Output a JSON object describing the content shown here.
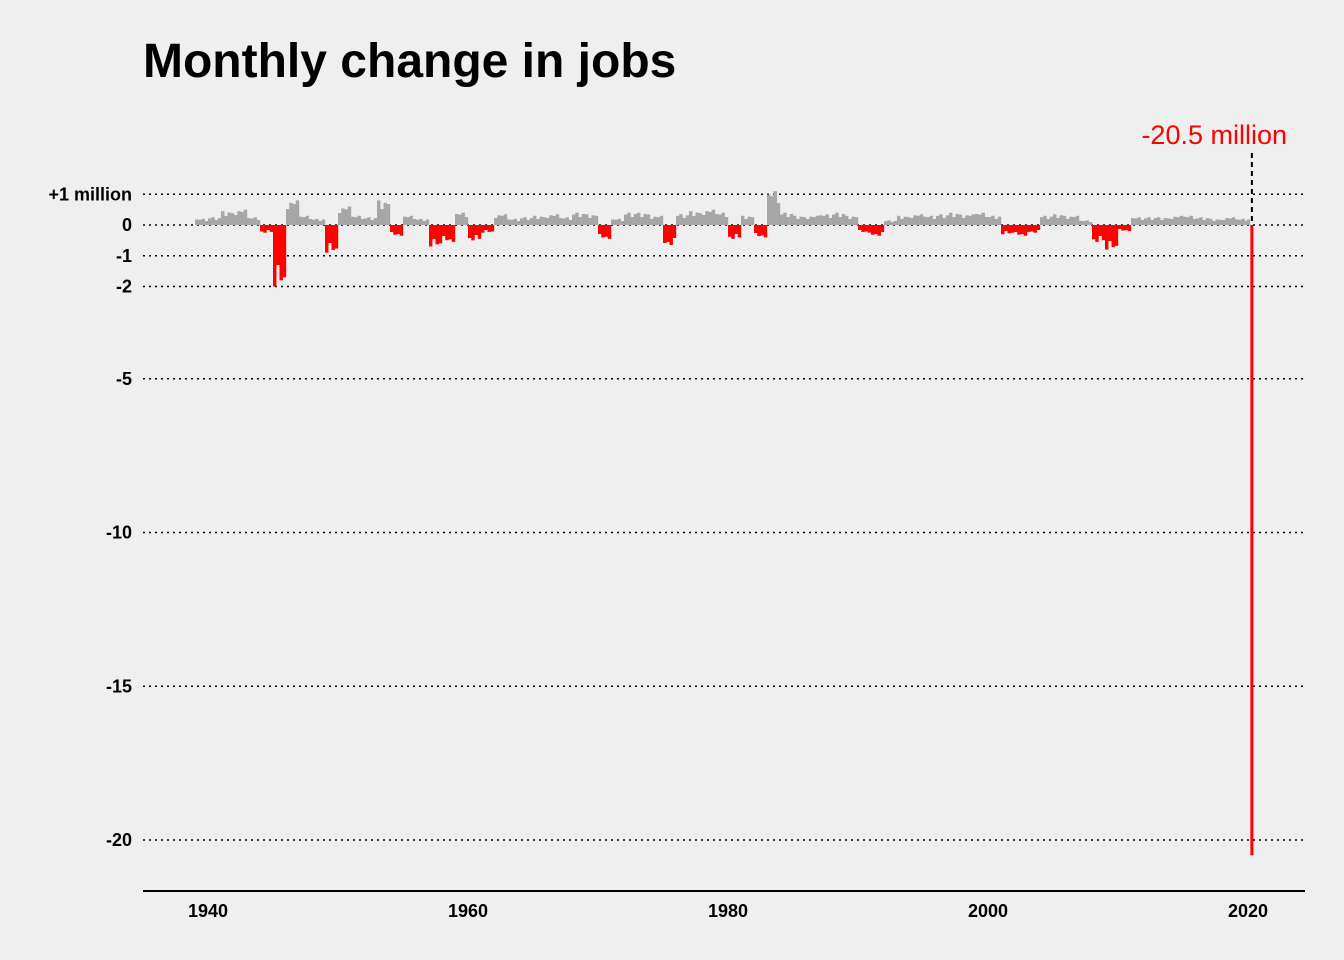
{
  "chart_data": {
    "type": "bar",
    "title": "Monthly change in jobs",
    "xlabel": "",
    "ylabel": "",
    "x_ticks": [
      1940,
      1960,
      1980,
      2000,
      2020
    ],
    "xlim": [
      1935,
      2024.5
    ],
    "y_ticks": [
      {
        "value": 1,
        "label": "+1 million"
      },
      {
        "value": 0,
        "label": "0"
      },
      {
        "value": -1,
        "label": "-1"
      },
      {
        "value": -2,
        "label": "-2"
      },
      {
        "value": -5,
        "label": "-5"
      },
      {
        "value": -10,
        "label": "-10"
      },
      {
        "value": -15,
        "label": "-15"
      },
      {
        "value": -20,
        "label": "-20"
      }
    ],
    "ylim": [
      -21,
      1.5
    ],
    "grid": "dotted horizontal at y ticks",
    "positive_color": "#a6a6a6",
    "negative_color": "#ff0000",
    "annotation": {
      "text": "-20.5 million",
      "x": 2020.3,
      "value": -20.5,
      "color": "#ff0000"
    },
    "units": "millions of jobs",
    "series": [
      {
        "values_by_year": [
          {
            "year": 1939,
            "value": 0.2
          },
          {
            "year": 1940,
            "value": 0.25
          },
          {
            "year": 1941,
            "value": 0.45
          },
          {
            "year": 1942,
            "value": 0.5
          },
          {
            "year": 1943,
            "value": 0.25
          },
          {
            "year": 1944,
            "value": -0.25
          },
          {
            "year": 1945,
            "value": -2.0
          },
          {
            "year": 1946,
            "value": 0.8
          },
          {
            "year": 1947,
            "value": 0.3
          },
          {
            "year": 1948,
            "value": 0.2
          },
          {
            "year": 1949,
            "value": -0.9
          },
          {
            "year": 1950,
            "value": 0.6
          },
          {
            "year": 1951,
            "value": 0.3
          },
          {
            "year": 1952,
            "value": 0.25
          },
          {
            "year": 1953,
            "value": 0.8
          },
          {
            "year": 1954,
            "value": -0.35
          },
          {
            "year": 1955,
            "value": 0.3
          },
          {
            "year": 1956,
            "value": 0.2
          },
          {
            "year": 1957,
            "value": -0.7
          },
          {
            "year": 1958,
            "value": -0.55
          },
          {
            "year": 1959,
            "value": 0.4
          },
          {
            "year": 1960,
            "value": -0.5
          },
          {
            "year": 1961,
            "value": -0.25
          },
          {
            "year": 1962,
            "value": 0.35
          },
          {
            "year": 1963,
            "value": 0.2
          },
          {
            "year": 1964,
            "value": 0.25
          },
          {
            "year": 1965,
            "value": 0.3
          },
          {
            "year": 1966,
            "value": 0.35
          },
          {
            "year": 1967,
            "value": 0.25
          },
          {
            "year": 1968,
            "value": 0.4
          },
          {
            "year": 1969,
            "value": 0.35
          },
          {
            "year": 1970,
            "value": -0.45
          },
          {
            "year": 1971,
            "value": 0.2
          },
          {
            "year": 1972,
            "value": 0.4
          },
          {
            "year": 1973,
            "value": 0.4
          },
          {
            "year": 1974,
            "value": 0.3
          },
          {
            "year": 1975,
            "value": -0.65
          },
          {
            "year": 1976,
            "value": 0.35
          },
          {
            "year": 1977,
            "value": 0.45
          },
          {
            "year": 1978,
            "value": 0.5
          },
          {
            "year": 1979,
            "value": 0.4
          },
          {
            "year": 1980,
            "value": -0.45
          },
          {
            "year": 1981,
            "value": 0.3
          },
          {
            "year": 1982,
            "value": -0.4
          },
          {
            "year": 1983,
            "value": 1.1
          },
          {
            "year": 1984,
            "value": 0.4
          },
          {
            "year": 1985,
            "value": 0.3
          },
          {
            "year": 1986,
            "value": 0.3
          },
          {
            "year": 1987,
            "value": 0.35
          },
          {
            "year": 1988,
            "value": 0.4
          },
          {
            "year": 1989,
            "value": 0.3
          },
          {
            "year": 1990,
            "value": -0.25
          },
          {
            "year": 1991,
            "value": -0.35
          },
          {
            "year": 1992,
            "value": 0.15
          },
          {
            "year": 1993,
            "value": 0.3
          },
          {
            "year": 1994,
            "value": 0.35
          },
          {
            "year": 1995,
            "value": 0.3
          },
          {
            "year": 1996,
            "value": 0.35
          },
          {
            "year": 1997,
            "value": 0.4
          },
          {
            "year": 1998,
            "value": 0.35
          },
          {
            "year": 1999,
            "value": 0.4
          },
          {
            "year": 2000,
            "value": 0.3
          },
          {
            "year": 2001,
            "value": -0.3
          },
          {
            "year": 2002,
            "value": -0.35
          },
          {
            "year": 2003,
            "value": -0.25
          },
          {
            "year": 2004,
            "value": 0.3
          },
          {
            "year": 2005,
            "value": 0.35
          },
          {
            "year": 2006,
            "value": 0.3
          },
          {
            "year": 2007,
            "value": 0.15
          },
          {
            "year": 2008,
            "value": -0.55
          },
          {
            "year": 2009,
            "value": -0.8
          },
          {
            "year": 2010,
            "value": -0.2
          },
          {
            "year": 2011,
            "value": 0.25
          },
          {
            "year": 2012,
            "value": 0.25
          },
          {
            "year": 2013,
            "value": 0.25
          },
          {
            "year": 2014,
            "value": 0.3
          },
          {
            "year": 2015,
            "value": 0.3
          },
          {
            "year": 2016,
            "value": 0.25
          },
          {
            "year": 2017,
            "value": 0.2
          },
          {
            "year": 2018,
            "value": 0.25
          },
          {
            "year": 2019,
            "value": 0.2
          },
          {
            "year": 2020,
            "value": -20.5
          }
        ]
      }
    ]
  }
}
